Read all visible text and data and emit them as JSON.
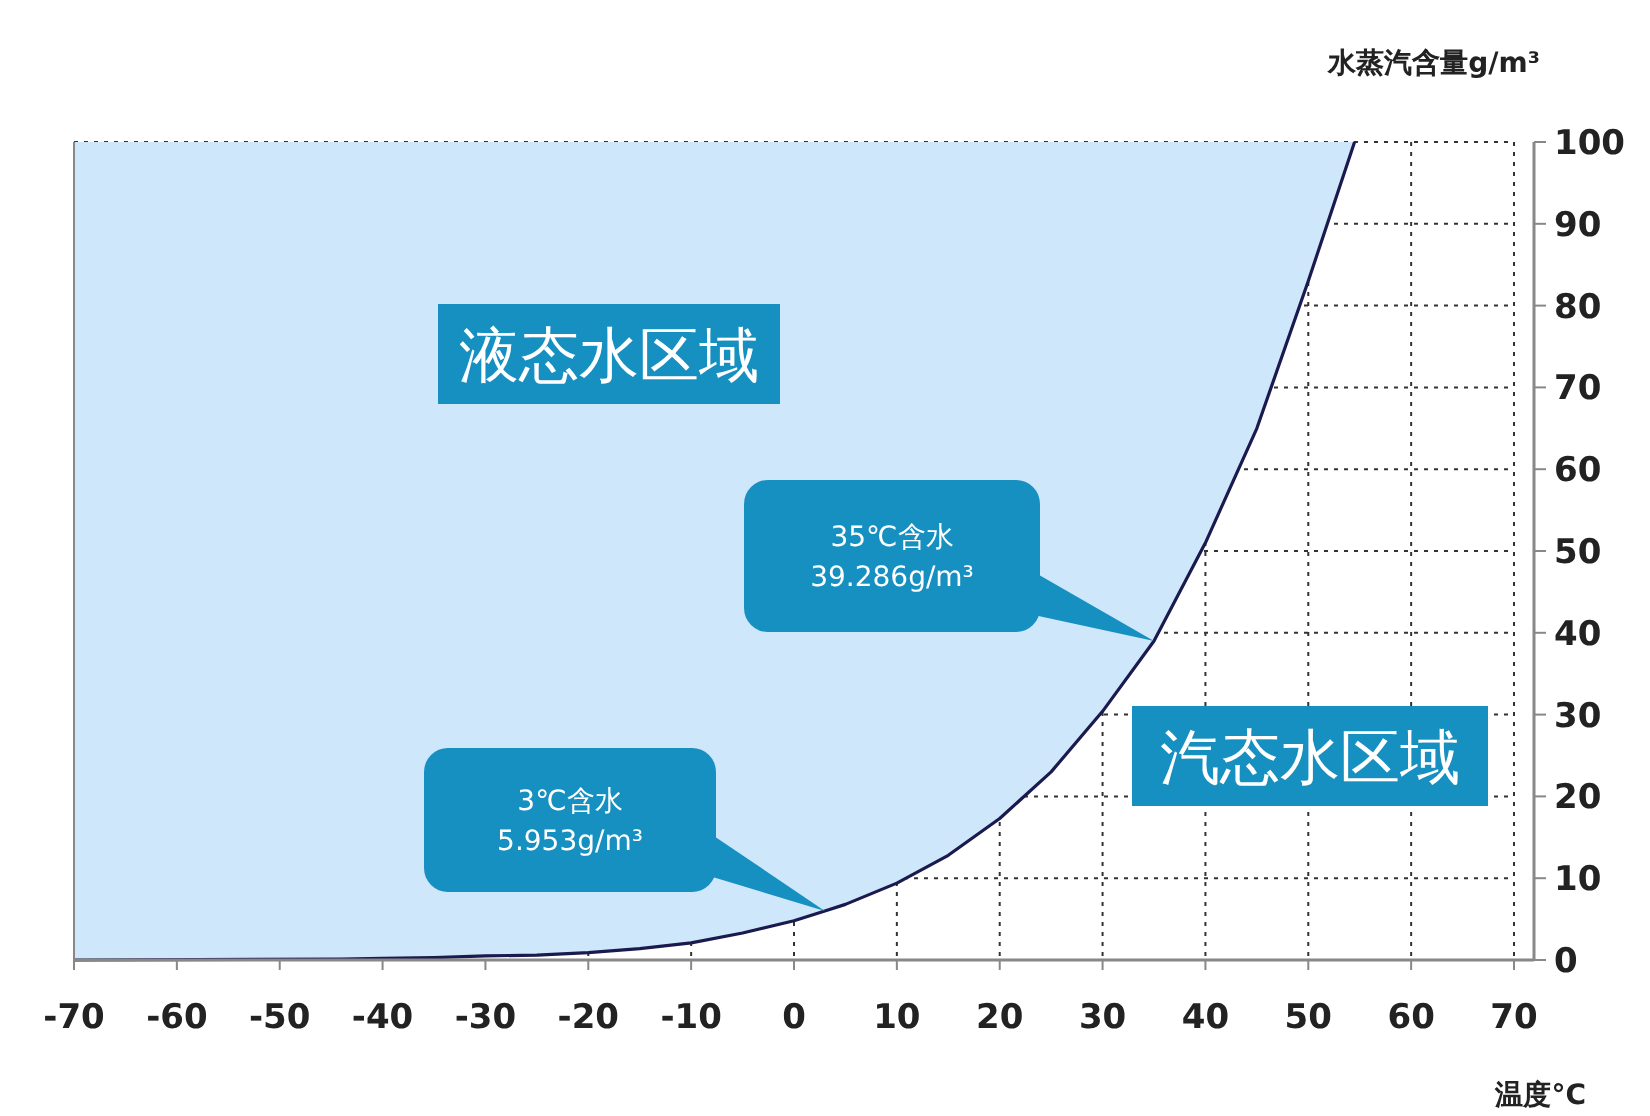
{
  "chart_data": {
    "type": "line",
    "x": [
      -70,
      -44,
      -40,
      -35,
      -30,
      -25,
      -20,
      -15,
      -10,
      -5,
      0,
      3,
      5,
      10,
      15,
      20,
      25,
      30,
      35,
      40,
      45,
      50,
      54.5
    ],
    "series": [
      {
        "color": "#1a1a4e",
        "upper": [
          100,
          100,
          100,
          100,
          100,
          100,
          100,
          100,
          100,
          100,
          100,
          100,
          100,
          100,
          100,
          100,
          100,
          100,
          100,
          100,
          100,
          100,
          100
        ],
        "lower": [
          0,
          0.1,
          0.2,
          0.3,
          0.5,
          0.6,
          0.9,
          1.4,
          2.1,
          3.3,
          4.8,
          6,
          6.8,
          9.4,
          12.8,
          17.3,
          23,
          30.4,
          39,
          51,
          65,
          83,
          100
        ],
        "values": [
          0,
          0.1,
          0.2,
          0.3,
          0.5,
          0.6,
          0.9,
          1.4,
          2.1,
          3.3,
          4.8,
          6,
          6.8,
          9.4,
          12.8,
          17.3,
          23,
          30.4,
          39,
          51,
          65,
          83,
          100
        ]
      }
    ],
    "xlim": [
      -70,
      70
    ],
    "ylim": [
      0,
      100
    ],
    "xticks": [
      -70,
      -60,
      -50,
      -40,
      -30,
      -20,
      -10,
      0,
      10,
      20,
      30,
      40,
      50,
      60,
      70
    ],
    "yticks": [
      0,
      10,
      20,
      30,
      40,
      50,
      60,
      70,
      80,
      90,
      100
    ],
    "grid": true,
    "xlabel": "温度°C",
    "ylabel": "水蒸汽含量g/m³",
    "annotations": [
      "液态水区域",
      "汽态水区域",
      "3℃含水\n5.953g/m³",
      "35℃含水\n39.286g/m³"
    ]
  }
}
